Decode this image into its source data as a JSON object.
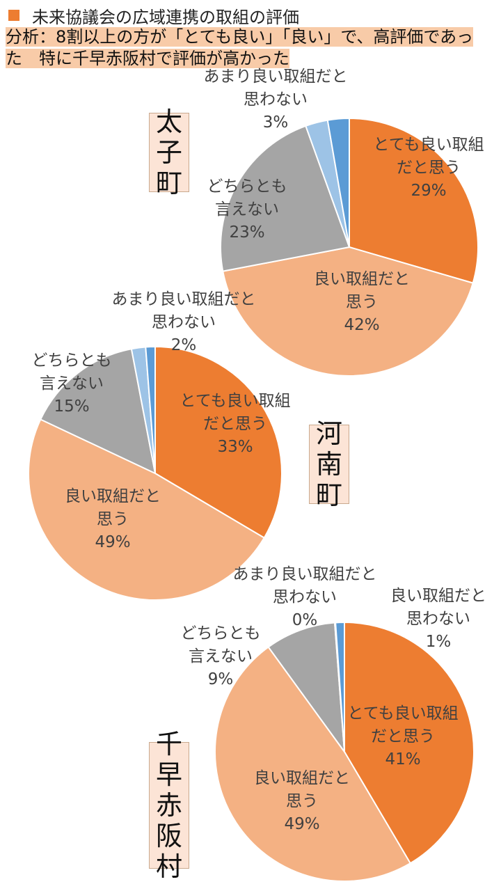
{
  "header": {
    "title": "未来協議会の広域連携の取組の評価",
    "analysis_line1": "分析：8割以上の方が「とても良い」「良い」で、高評価であっ",
    "analysis_line2": "た　特に千早赤阪村で評価が高かった"
  },
  "colors": {
    "very_good": "#ed7d31",
    "good": "#f4b183",
    "neutral": "#a5a5a5",
    "not_much": "#9dc3e6",
    "not_good": "#5b9bd5"
  },
  "chart_data": [
    {
      "type": "pie",
      "municipality": "太子町",
      "slices": [
        {
          "label": [
            "とても良い取組",
            "だと思う"
          ],
          "percent_label": "29%",
          "value": 29.5
        },
        {
          "label": [
            "良い取組だと",
            "思う"
          ],
          "percent_label": "42%",
          "value": 42.5
        },
        {
          "label": [
            "どちらとも",
            "言えない"
          ],
          "percent_label": "23%",
          "value": 22.5
        },
        {
          "label": [
            "あまり良い取組だと",
            "思わない"
          ],
          "percent_label": "3%",
          "value": 2.8
        },
        {
          "label": [],
          "percent_label": "",
          "value": 2.7
        }
      ]
    },
    {
      "type": "pie",
      "municipality": "河南町",
      "slices": [
        {
          "label": [
            "とても良い取組",
            "だと思う"
          ],
          "percent_label": "33%",
          "value": 33.5
        },
        {
          "label": [
            "良い取組だと",
            "思う"
          ],
          "percent_label": "49%",
          "value": 48.5
        },
        {
          "label": [
            "どちらとも",
            "言えない"
          ],
          "percent_label": "15%",
          "value": 15.0
        },
        {
          "label": [
            "あまり良い取組だと",
            "思わない"
          ],
          "percent_label": "2%",
          "value": 1.8
        },
        {
          "label": [],
          "percent_label": "",
          "value": 1.2
        }
      ]
    },
    {
      "type": "pie",
      "municipality": "千早赤阪村",
      "slices": [
        {
          "label": [
            "とても良い取組",
            "だと思う"
          ],
          "percent_label": "41%",
          "value": 41.5
        },
        {
          "label": [
            "良い取組だと",
            "思う"
          ],
          "percent_label": "49%",
          "value": 48.5
        },
        {
          "label": [
            "どちらとも",
            "言えない"
          ],
          "percent_label": "9%",
          "value": 8.8
        },
        {
          "label": [
            "あまり良い取組だと",
            "思わない"
          ],
          "percent_label": "0%",
          "value": 0.1
        },
        {
          "label": [
            "良い取組だと",
            "思わない"
          ],
          "percent_label": "1%",
          "value": 1.1
        }
      ]
    }
  ]
}
